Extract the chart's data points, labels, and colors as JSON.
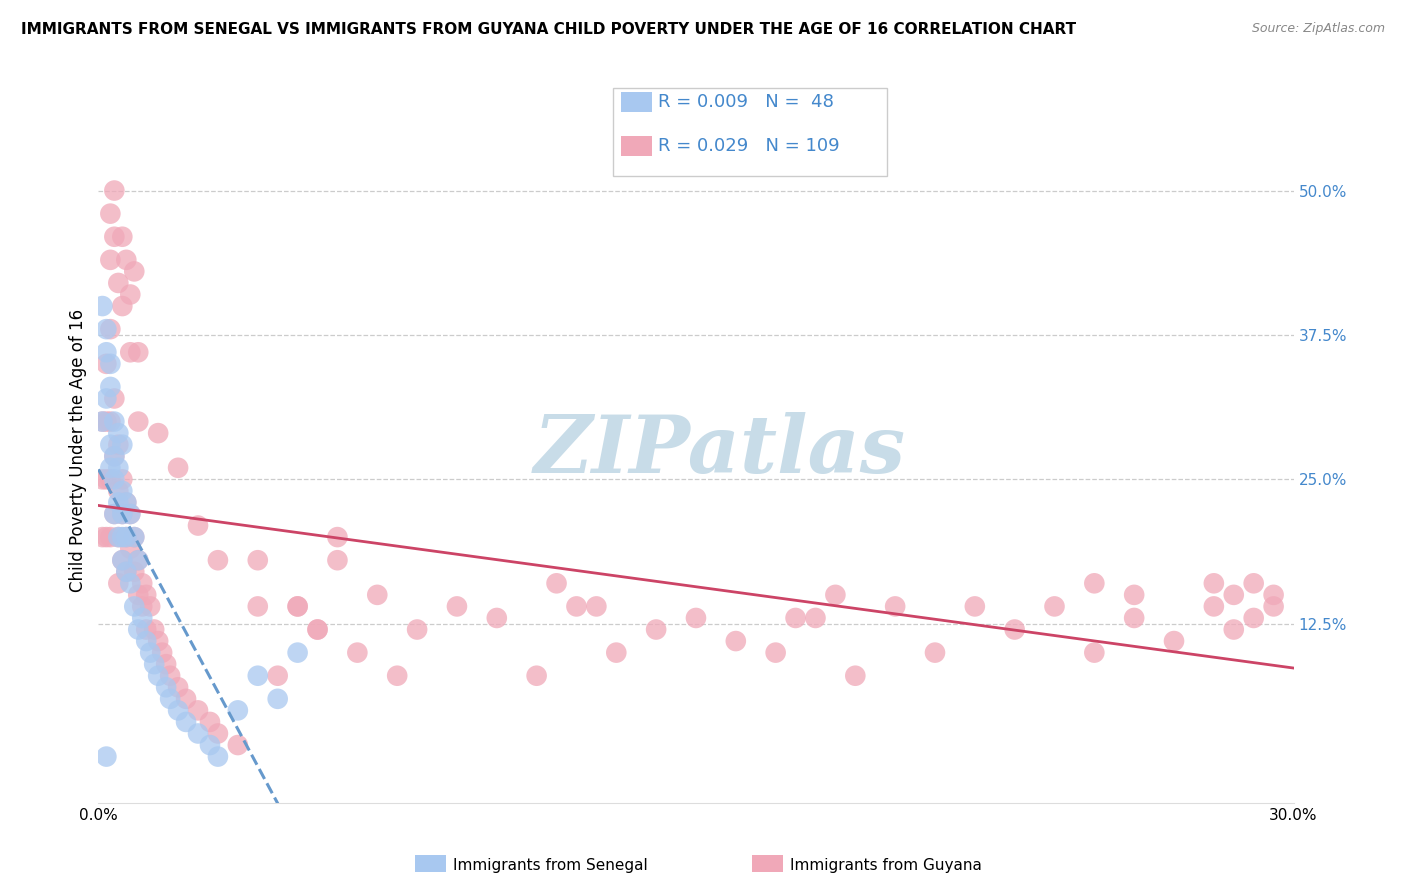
{
  "title": "IMMIGRANTS FROM SENEGAL VS IMMIGRANTS FROM GUYANA CHILD POVERTY UNDER THE AGE OF 16 CORRELATION CHART",
  "source": "Source: ZipAtlas.com",
  "ylabel": "Child Poverty Under the Age of 16",
  "xlim": [
    0.0,
    0.3
  ],
  "ylim": [
    -0.03,
    0.58
  ],
  "yticks_right": [
    0.125,
    0.25,
    0.375,
    0.5
  ],
  "yticklabels_right": [
    "12.5%",
    "25.0%",
    "37.5%",
    "50.0%"
  ],
  "legend_R1": "R = 0.009",
  "legend_N1": "N =  48",
  "legend_R2": "R = 0.029",
  "legend_N2": "N = 109",
  "color_senegal": "#a8c8f0",
  "color_guyana": "#f0a8b8",
  "color_senegal_line": "#6699cc",
  "color_guyana_line": "#cc4466",
  "color_text_blue": "#4488cc",
  "watermark": "ZIPatlas",
  "watermark_color": "#c8dce8",
  "senegal_x": [
    0.001,
    0.001,
    0.002,
    0.002,
    0.002,
    0.003,
    0.003,
    0.003,
    0.003,
    0.004,
    0.004,
    0.004,
    0.004,
    0.005,
    0.005,
    0.005,
    0.005,
    0.006,
    0.006,
    0.006,
    0.006,
    0.006,
    0.007,
    0.007,
    0.007,
    0.008,
    0.008,
    0.009,
    0.009,
    0.01,
    0.01,
    0.011,
    0.012,
    0.013,
    0.014,
    0.015,
    0.017,
    0.018,
    0.02,
    0.022,
    0.025,
    0.028,
    0.03,
    0.035,
    0.04,
    0.045,
    0.05,
    0.002
  ],
  "senegal_y": [
    0.3,
    0.4,
    0.32,
    0.36,
    0.38,
    0.26,
    0.28,
    0.33,
    0.35,
    0.22,
    0.25,
    0.27,
    0.3,
    0.2,
    0.23,
    0.26,
    0.29,
    0.18,
    0.2,
    0.22,
    0.24,
    0.28,
    0.17,
    0.2,
    0.23,
    0.16,
    0.22,
    0.14,
    0.2,
    0.12,
    0.18,
    0.13,
    0.11,
    0.1,
    0.09,
    0.08,
    0.07,
    0.06,
    0.05,
    0.04,
    0.03,
    0.02,
    0.01,
    0.05,
    0.08,
    0.06,
    0.1,
    0.01
  ],
  "guyana_x": [
    0.001,
    0.001,
    0.001,
    0.002,
    0.002,
    0.002,
    0.002,
    0.003,
    0.003,
    0.003,
    0.003,
    0.004,
    0.004,
    0.004,
    0.005,
    0.005,
    0.005,
    0.005,
    0.006,
    0.006,
    0.006,
    0.007,
    0.007,
    0.007,
    0.008,
    0.008,
    0.009,
    0.009,
    0.01,
    0.01,
    0.011,
    0.011,
    0.012,
    0.012,
    0.013,
    0.014,
    0.015,
    0.016,
    0.017,
    0.018,
    0.02,
    0.022,
    0.025,
    0.028,
    0.03,
    0.03,
    0.035,
    0.04,
    0.04,
    0.045,
    0.05,
    0.055,
    0.06,
    0.06,
    0.065,
    0.07,
    0.075,
    0.08,
    0.09,
    0.1,
    0.11,
    0.12,
    0.13,
    0.14,
    0.15,
    0.16,
    0.17,
    0.18,
    0.19,
    0.2,
    0.21,
    0.22,
    0.23,
    0.24,
    0.25,
    0.26,
    0.27,
    0.28,
    0.285,
    0.29,
    0.295,
    0.003,
    0.004,
    0.005,
    0.006,
    0.007,
    0.008,
    0.009,
    0.01,
    0.015,
    0.02,
    0.025,
    0.003,
    0.004,
    0.006,
    0.008,
    0.01,
    0.05,
    0.055,
    0.115,
    0.125,
    0.175,
    0.185,
    0.25,
    0.26,
    0.28,
    0.285,
    0.29,
    0.295
  ],
  "guyana_y": [
    0.3,
    0.25,
    0.2,
    0.35,
    0.3,
    0.25,
    0.2,
    0.38,
    0.3,
    0.25,
    0.2,
    0.32,
    0.27,
    0.22,
    0.28,
    0.24,
    0.2,
    0.16,
    0.25,
    0.22,
    0.18,
    0.23,
    0.2,
    0.17,
    0.22,
    0.19,
    0.2,
    0.17,
    0.18,
    0.15,
    0.16,
    0.14,
    0.15,
    0.12,
    0.14,
    0.12,
    0.11,
    0.1,
    0.09,
    0.08,
    0.07,
    0.06,
    0.05,
    0.04,
    0.03,
    0.18,
    0.02,
    0.14,
    0.18,
    0.08,
    0.14,
    0.12,
    0.18,
    0.2,
    0.1,
    0.15,
    0.08,
    0.12,
    0.14,
    0.13,
    0.08,
    0.14,
    0.1,
    0.12,
    0.13,
    0.11,
    0.1,
    0.13,
    0.08,
    0.14,
    0.1,
    0.14,
    0.12,
    0.14,
    0.1,
    0.13,
    0.11,
    0.14,
    0.12,
    0.13,
    0.14,
    0.44,
    0.46,
    0.42,
    0.4,
    0.44,
    0.41,
    0.43,
    0.36,
    0.29,
    0.26,
    0.21,
    0.48,
    0.5,
    0.46,
    0.36,
    0.3,
    0.14,
    0.12,
    0.16,
    0.14,
    0.13,
    0.15,
    0.16,
    0.15,
    0.16,
    0.15,
    0.16,
    0.15
  ]
}
